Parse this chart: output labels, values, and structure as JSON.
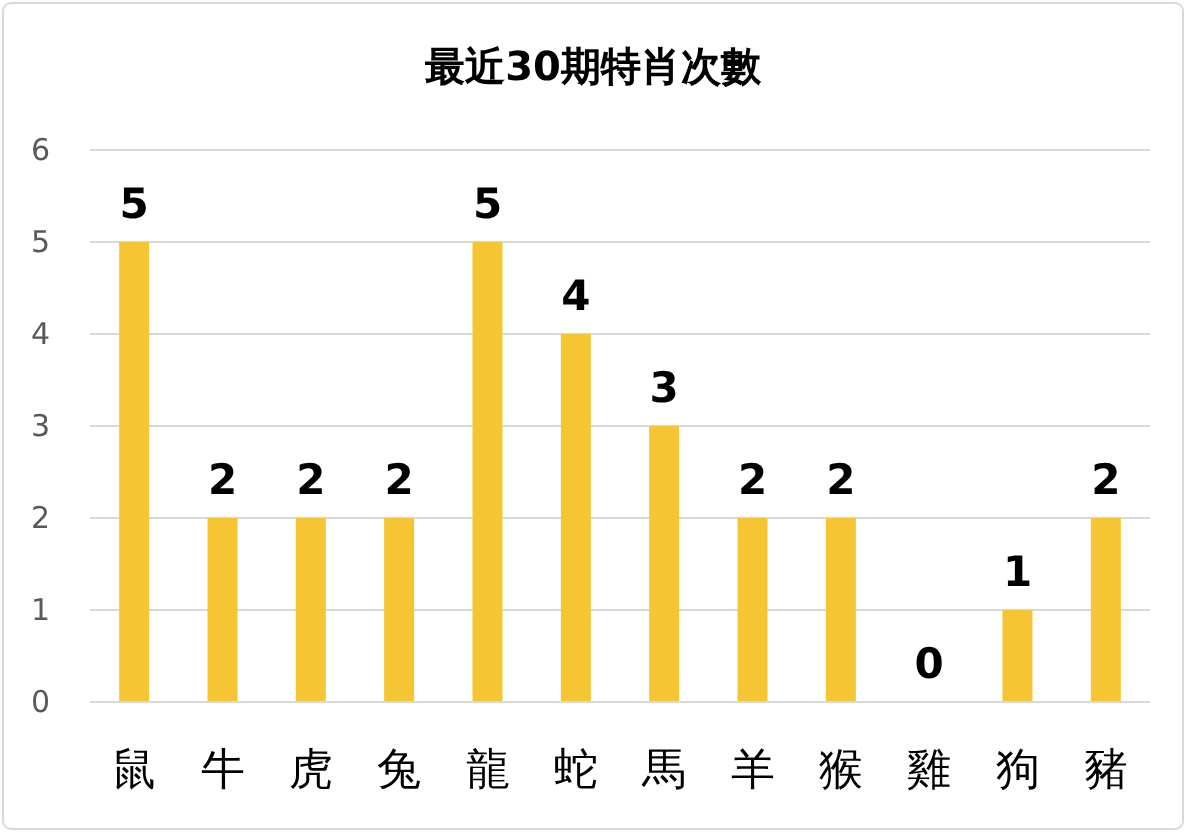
{
  "chart_data": {
    "type": "bar",
    "title": "最近30期特肖次數",
    "categories": [
      "鼠",
      "牛",
      "虎",
      "兔",
      "龍",
      "蛇",
      "馬",
      "羊",
      "猴",
      "雞",
      "狗",
      "豬"
    ],
    "values": [
      5,
      2,
      2,
      2,
      5,
      4,
      3,
      2,
      2,
      0,
      1,
      2
    ],
    "color": "#f6c533",
    "ylim": [
      0,
      6
    ],
    "yticks": [
      0,
      1,
      2,
      3,
      4,
      5,
      6
    ],
    "grid": "y",
    "data_labels": true
  }
}
